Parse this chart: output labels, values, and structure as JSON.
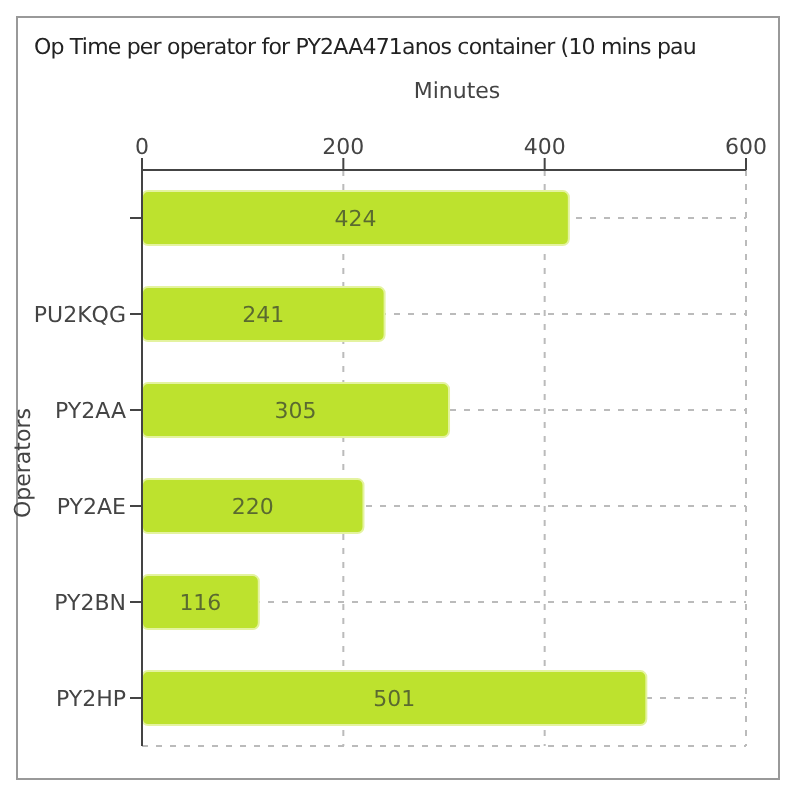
{
  "chart_data": {
    "type": "bar",
    "orientation": "horizontal",
    "title": "Op Time per operator for PY2AA471anos container (10 mins pau",
    "xlabel": "Minutes",
    "ylabel": "Operators",
    "categories": [
      null,
      "PU2KQG",
      "PY2AA",
      "PY2AE",
      "PY2BN",
      "PY2HP"
    ],
    "values": [
      424,
      241,
      305,
      220,
      116,
      501
    ],
    "color": "#bde22e",
    "xlim": [
      0,
      600
    ],
    "xticks": [
      0,
      200,
      400,
      600
    ],
    "grid": true,
    "data_labels": true
  }
}
